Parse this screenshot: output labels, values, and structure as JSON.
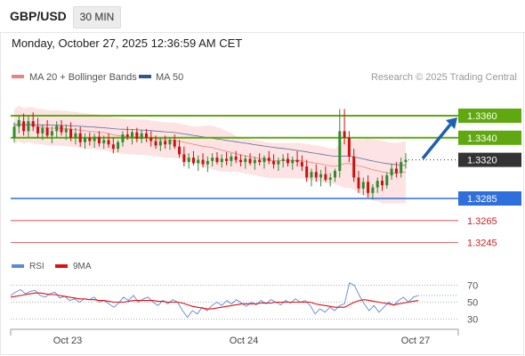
{
  "header": {
    "symbol": "GBP/USD",
    "timeframe": "30 MIN",
    "timestamp": "Monday, October 27, 2025 12:36:59 AM CET"
  },
  "colors": {
    "up_candle": "#2e8b2e",
    "down_candle": "#cc1111",
    "band_fill": "#fde3e3",
    "ma20": "#f08080",
    "ma50": "#5a6f9e",
    "resistance": "#5fa80f",
    "support": "#2f6fdb",
    "support_dashed": "#e23b3b",
    "rsi": "#5b8ad8",
    "rsi_ma": "#e01010",
    "arrow": "#1f5fb0"
  },
  "chart_data": [
    {
      "type": "candlestick",
      "title": "",
      "legend": [
        {
          "label": "MA 20 + Bollinger Bands",
          "color": "#f08080"
        },
        {
          "label": "MA 50",
          "color": "#2f5597"
        }
      ],
      "credit": "Research © 2025 Trading Central",
      "y_range": [
        1.3238,
        1.3376
      ],
      "current_price": 1.332,
      "levels": [
        {
          "price": 1.336,
          "label": "1.3360",
          "kind": "resistance"
        },
        {
          "price": 1.334,
          "label": "1.3340",
          "kind": "resistance"
        },
        {
          "price": 1.3285,
          "label": "1.3285",
          "kind": "support"
        },
        {
          "price": 1.3265,
          "label": "1.3265",
          "kind": "support-minor"
        },
        {
          "price": 1.3245,
          "label": "1.3245",
          "kind": "support-minor"
        }
      ],
      "x_labels": [
        "Oct 23",
        "Oct 24",
        "Oct 27"
      ],
      "forecast": {
        "from": 1.3322,
        "to": 1.336,
        "direction": "up"
      },
      "ohlc": [
        [
          1.334,
          1.3354,
          1.3336,
          1.335
        ],
        [
          1.335,
          1.336,
          1.3344,
          1.3356
        ],
        [
          1.3355,
          1.3362,
          1.3342,
          1.3346
        ],
        [
          1.3346,
          1.336,
          1.334,
          1.3355
        ],
        [
          1.3355,
          1.3363,
          1.3346,
          1.335
        ],
        [
          1.335,
          1.3358,
          1.334,
          1.3344
        ],
        [
          1.3344,
          1.3352,
          1.3338,
          1.3349
        ],
        [
          1.3349,
          1.3356,
          1.334,
          1.3342
        ],
        [
          1.3342,
          1.335,
          1.3335,
          1.3346
        ],
        [
          1.3346,
          1.3355,
          1.334,
          1.3351
        ],
        [
          1.3351,
          1.3356,
          1.3342,
          1.3345
        ],
        [
          1.3345,
          1.3352,
          1.3338,
          1.3348
        ],
        [
          1.3348,
          1.3354,
          1.3337,
          1.334
        ],
        [
          1.334,
          1.3349,
          1.3334,
          1.3344
        ],
        [
          1.3344,
          1.335,
          1.3332,
          1.3336
        ],
        [
          1.3336,
          1.3344,
          1.333,
          1.334
        ],
        [
          1.334,
          1.3345,
          1.3333,
          1.3337
        ],
        [
          1.3337,
          1.3344,
          1.3331,
          1.3341
        ],
        [
          1.3341,
          1.3346,
          1.3332,
          1.3335
        ],
        [
          1.3335,
          1.3342,
          1.333,
          1.3338
        ],
        [
          1.3338,
          1.3344,
          1.3331,
          1.3334
        ],
        [
          1.3334,
          1.334,
          1.3326,
          1.333
        ],
        [
          1.333,
          1.3338,
          1.3327,
          1.3336
        ],
        [
          1.3336,
          1.3346,
          1.3332,
          1.3343
        ],
        [
          1.3343,
          1.335,
          1.3338,
          1.3341
        ],
        [
          1.3341,
          1.3348,
          1.3334,
          1.3345
        ],
        [
          1.3345,
          1.3349,
          1.3336,
          1.3339
        ],
        [
          1.3339,
          1.3347,
          1.3335,
          1.3344
        ],
        [
          1.3344,
          1.3348,
          1.3336,
          1.334
        ],
        [
          1.334,
          1.3346,
          1.3332,
          1.3337
        ],
        [
          1.3337,
          1.3342,
          1.333,
          1.3333
        ],
        [
          1.3333,
          1.334,
          1.3328,
          1.3337
        ],
        [
          1.3337,
          1.3342,
          1.333,
          1.3334
        ],
        [
          1.3334,
          1.334,
          1.3329,
          1.3338
        ],
        [
          1.3338,
          1.3343,
          1.333,
          1.3332
        ],
        [
          1.3332,
          1.3338,
          1.3322,
          1.3325
        ],
        [
          1.3325,
          1.3332,
          1.3314,
          1.3318
        ],
        [
          1.3318,
          1.3326,
          1.3312,
          1.3322
        ],
        [
          1.3322,
          1.3328,
          1.3315,
          1.3317
        ],
        [
          1.3317,
          1.3324,
          1.331,
          1.332
        ],
        [
          1.332,
          1.3326,
          1.3313,
          1.3316
        ],
        [
          1.3316,
          1.3323,
          1.3309,
          1.3319
        ],
        [
          1.3319,
          1.3326,
          1.3314,
          1.3322
        ],
        [
          1.3322,
          1.3327,
          1.3316,
          1.3318
        ],
        [
          1.3318,
          1.3325,
          1.3313,
          1.3321
        ],
        [
          1.3321,
          1.3327,
          1.3315,
          1.3319
        ],
        [
          1.3319,
          1.3326,
          1.3314,
          1.3323
        ],
        [
          1.3323,
          1.3328,
          1.3317,
          1.332
        ],
        [
          1.332,
          1.3325,
          1.3314,
          1.3318
        ],
        [
          1.3318,
          1.3324,
          1.3312,
          1.3321
        ],
        [
          1.3321,
          1.3326,
          1.3315,
          1.3317
        ],
        [
          1.3317,
          1.3323,
          1.3311,
          1.332
        ],
        [
          1.332,
          1.3326,
          1.3315,
          1.3318
        ],
        [
          1.3318,
          1.3324,
          1.3312,
          1.3322
        ],
        [
          1.3322,
          1.3328,
          1.3316,
          1.3319
        ],
        [
          1.3319,
          1.3325,
          1.3312,
          1.3316
        ],
        [
          1.3316,
          1.3322,
          1.331,
          1.3319
        ],
        [
          1.3319,
          1.3325,
          1.3313,
          1.3321
        ],
        [
          1.3321,
          1.3326,
          1.3314,
          1.3317
        ],
        [
          1.3317,
          1.3323,
          1.3311,
          1.332
        ],
        [
          1.332,
          1.3328,
          1.3314,
          1.3318
        ],
        [
          1.3318,
          1.3324,
          1.331,
          1.3314
        ],
        [
          1.3314,
          1.332,
          1.33,
          1.3304
        ],
        [
          1.3304,
          1.3312,
          1.3296,
          1.3309
        ],
        [
          1.3309,
          1.3316,
          1.33,
          1.3304
        ],
        [
          1.3304,
          1.3311,
          1.3296,
          1.3307
        ],
        [
          1.3307,
          1.3314,
          1.33,
          1.3302
        ],
        [
          1.3302,
          1.3308,
          1.3296,
          1.3304
        ],
        [
          1.3304,
          1.3312,
          1.33,
          1.331
        ],
        [
          1.331,
          1.3366,
          1.3304,
          1.3346
        ],
        [
          1.3346,
          1.3366,
          1.3334,
          1.334
        ],
        [
          1.334,
          1.3346,
          1.3318,
          1.3323
        ],
        [
          1.3323,
          1.333,
          1.33,
          1.3304
        ],
        [
          1.3304,
          1.331,
          1.329,
          1.3294
        ],
        [
          1.3294,
          1.3304,
          1.3288,
          1.33
        ],
        [
          1.33,
          1.3306,
          1.3286,
          1.329
        ],
        [
          1.329,
          1.3298,
          1.3284,
          1.3295
        ],
        [
          1.3295,
          1.3304,
          1.329,
          1.3301
        ],
        [
          1.3301,
          1.3306,
          1.3292,
          1.3297
        ],
        [
          1.3297,
          1.3309,
          1.3294,
          1.3306
        ],
        [
          1.3306,
          1.3316,
          1.3302,
          1.3312
        ],
        [
          1.3312,
          1.3318,
          1.3304,
          1.3308
        ],
        [
          1.3308,
          1.3322,
          1.3304,
          1.3318
        ],
        [
          1.3318,
          1.3326,
          1.3312,
          1.332
        ]
      ]
    },
    {
      "type": "line",
      "title": "",
      "legend": [
        {
          "label": "RSI",
          "color": "#5b8ad8"
        },
        {
          "label": "9MA",
          "color": "#e01010"
        }
      ],
      "y_range": [
        23,
        76
      ],
      "y_ticks": [
        70,
        50,
        30
      ],
      "series": [
        {
          "name": "RSI",
          "values": [
            58,
            62,
            65,
            60,
            63,
            64,
            58,
            56,
            60,
            62,
            55,
            57,
            52,
            54,
            50,
            54,
            53,
            56,
            50,
            52,
            48,
            44,
            49,
            56,
            52,
            58,
            50,
            54,
            56,
            50,
            46,
            52,
            48,
            53,
            50,
            40,
            32,
            40,
            36,
            44,
            40,
            46,
            50,
            46,
            52,
            48,
            53,
            49,
            45,
            50,
            47,
            52,
            48,
            53,
            50,
            47,
            52,
            49,
            54,
            50,
            52,
            46,
            36,
            42,
            38,
            44,
            40,
            46,
            48,
            73,
            70,
            58,
            48,
            40,
            46,
            38,
            44,
            50,
            46,
            52,
            56,
            50,
            56,
            58
          ]
        },
        {
          "name": "9MA",
          "values": [
            56,
            57,
            58,
            59,
            60,
            61,
            61,
            60,
            59,
            59,
            58,
            57,
            56,
            55,
            54,
            54,
            53,
            53,
            52,
            52,
            51,
            50,
            50,
            50,
            51,
            52,
            52,
            52,
            52,
            52,
            51,
            51,
            50,
            50,
            50,
            49,
            47,
            45,
            44,
            43,
            42,
            42,
            43,
            44,
            45,
            46,
            47,
            48,
            48,
            48,
            48,
            49,
            49,
            49,
            50,
            50,
            50,
            50,
            50,
            50,
            50,
            50,
            48,
            47,
            46,
            45,
            44,
            44,
            44,
            47,
            50,
            52,
            53,
            52,
            51,
            50,
            49,
            48,
            47,
            48,
            49,
            50,
            51,
            52
          ]
        }
      ]
    }
  ]
}
